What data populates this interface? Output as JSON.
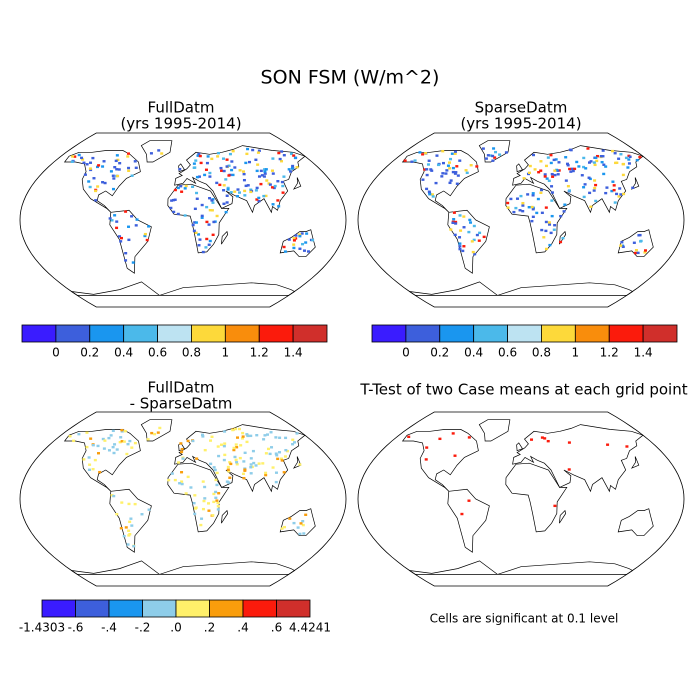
{
  "title": "SON FSM (W/m^2)",
  "panels": [
    {
      "title": [
        "FullDatm",
        "(yrs 1995-2014)"
      ]
    },
    {
      "title": [
        "SparseDatm",
        "(yrs 1995-2014)"
      ]
    },
    {
      "title": [
        "FullDatm",
        "- SparseDatm"
      ]
    },
    {
      "title": [
        "T-Test of two Case means at each grid point"
      ]
    }
  ],
  "colorbars": [
    {
      "colors": [
        "#3a1cff",
        "#3d5fdc",
        "#1a96ef",
        "#4bb9ea",
        "#bde3f2",
        "#fdd93a",
        "#f98d0c",
        "#fb1b0c",
        "#d02f2b"
      ],
      "labels": [
        "0",
        "0.2",
        "0.4",
        "0.6",
        "0.8",
        "1",
        "1.2",
        "1.4"
      ],
      "label_positions": "interior"
    },
    {
      "colors": [
        "#3a1cff",
        "#3d5fdc",
        "#1a96ef",
        "#4bb9ea",
        "#bde3f2",
        "#fdd93a",
        "#f98d0c",
        "#fb1b0c",
        "#d02f2b"
      ],
      "labels": [
        "0",
        "0.2",
        "0.4",
        "0.6",
        "0.8",
        "1",
        "1.2",
        "1.4"
      ],
      "label_positions": "interior"
    },
    {
      "colors": [
        "#3a1cff",
        "#3d5fdc",
        "#1a96ef",
        "#8ecde9",
        "#fff06a",
        "#f99d0c",
        "#fb1b0c",
        "#d02f2b"
      ],
      "labels": [
        "-1.4303",
        "-.6",
        "-.4",
        "-.2",
        ".0",
        ".2",
        ".4",
        ".6",
        "4.4241"
      ],
      "label_positions": "edges"
    }
  ],
  "note": "Cells are significant at 0.1 level"
}
